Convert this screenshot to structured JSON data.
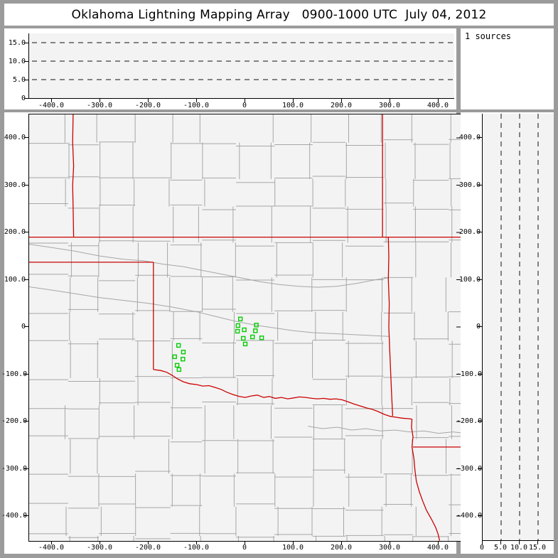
{
  "title": "Oklahoma Lightning Mapping Array   0900-1000 UTC  July 04, 2012",
  "sources_box": {
    "label": "1 sources"
  },
  "colors": {
    "frame_gray": "#9b9b9b",
    "plot_bg": "#f3f3f3",
    "axis_black": "#000000",
    "county_gray": "#a6a6a6",
    "river_gray": "#a6a6a6",
    "state_border_red": "#cc0000",
    "station_green": "#00cc00"
  },
  "chart_data": [
    {
      "id": "alt_vs_x",
      "type": "scatter",
      "description": "altitude (km) vs east-west distance (km); no sources plotted",
      "xlim": [
        -450,
        450
      ],
      "ylim": [
        0,
        17.5
      ],
      "x_ticks": [
        {
          "label": "-400.0",
          "value": -400
        },
        {
          "label": "-300.0",
          "value": -300
        },
        {
          "label": "-200.0",
          "value": -200
        },
        {
          "label": "-100.0",
          "value": -100
        },
        {
          "label": "0",
          "value": 0
        },
        {
          "label": "100.0",
          "value": 100
        },
        {
          "label": "200.0",
          "value": 200
        },
        {
          "label": "300.0",
          "value": 300
        },
        {
          "label": "400.0",
          "value": 400
        }
      ],
      "y_ticks": [
        {
          "label": "15.0",
          "value": 15
        },
        {
          "label": "10.0",
          "value": 10
        },
        {
          "label": "5.0",
          "value": 5
        },
        {
          "label": "0",
          "value": 0
        }
      ],
      "dashed_lines_km": [
        5,
        10,
        15
      ],
      "points": []
    },
    {
      "id": "plan_view",
      "type": "scatter",
      "description": "plan view map, km east-west vs km north-south; green squares are LMA stations",
      "sources_count": 1,
      "xlim": [
        -447,
        447
      ],
      "ylim": [
        -450,
        452
      ],
      "x_ticks": [
        {
          "label": "-400.0",
          "value": -400
        },
        {
          "label": "-300.0",
          "value": -300
        },
        {
          "label": "-200.0",
          "value": -200
        },
        {
          "label": "-100.0",
          "value": -100
        },
        {
          "label": "0",
          "value": 0
        },
        {
          "label": "100.0",
          "value": 100
        },
        {
          "label": "200.0",
          "value": 200
        },
        {
          "label": "300.0",
          "value": 300
        },
        {
          "label": "400.0",
          "value": 400
        }
      ],
      "y_ticks": [
        {
          "label": "400.0",
          "value": 400
        },
        {
          "label": "300.0",
          "value": 300
        },
        {
          "label": "200.0",
          "value": 200
        },
        {
          "label": "100.0",
          "value": 100
        },
        {
          "label": "0",
          "value": 0
        },
        {
          "label": "-100.0",
          "value": -100
        },
        {
          "label": "-200.0",
          "value": -200
        },
        {
          "label": "-300.0",
          "value": -300
        },
        {
          "label": "-400.0",
          "value": -400
        }
      ],
      "stations": [
        [
          -10,
          17
        ],
        [
          -15,
          3
        ],
        [
          -16,
          -9
        ],
        [
          -2,
          -6
        ],
        [
          23,
          4
        ],
        [
          21,
          -8
        ],
        [
          15,
          -21
        ],
        [
          34,
          -23
        ],
        [
          -4,
          -24
        ],
        [
          0,
          -36
        ],
        [
          -138,
          -39
        ],
        [
          -128,
          -53
        ],
        [
          -146,
          -63
        ],
        [
          -129,
          -68
        ],
        [
          -141,
          -81
        ],
        [
          -137,
          -90
        ]
      ],
      "state_borders": [
        [
          [
            -447,
            190
          ],
          [
            447,
            190
          ]
        ],
        [
          [
            -356,
            452
          ],
          [
            -357,
            390
          ],
          [
            -355,
            340
          ],
          [
            -357,
            300
          ],
          [
            -356,
            250
          ],
          [
            -355,
            190
          ]
        ],
        [
          [
            -447,
            137
          ],
          [
            -190,
            137
          ]
        ],
        [
          [
            -190,
            137
          ],
          [
            -190,
            -90
          ]
        ],
        [
          [
            -190,
            -90
          ],
          [
            -175,
            -92
          ],
          [
            -162,
            -96
          ],
          [
            -150,
            -103
          ],
          [
            -140,
            -110
          ],
          [
            -128,
            -116
          ],
          [
            -115,
            -120
          ],
          [
            -100,
            -122
          ],
          [
            -88,
            -125
          ],
          [
            -75,
            -124
          ],
          [
            -62,
            -128
          ],
          [
            -50,
            -132
          ],
          [
            -38,
            -138
          ],
          [
            -25,
            -143
          ],
          [
            -12,
            -147
          ],
          [
            0,
            -149
          ],
          [
            12,
            -146
          ],
          [
            25,
            -144
          ],
          [
            38,
            -149
          ],
          [
            50,
            -147
          ],
          [
            62,
            -151
          ],
          [
            75,
            -149
          ],
          [
            88,
            -152
          ],
          [
            100,
            -150
          ],
          [
            112,
            -148
          ],
          [
            125,
            -149
          ],
          [
            138,
            -151
          ],
          [
            150,
            -152
          ],
          [
            162,
            -151
          ],
          [
            175,
            -153
          ],
          [
            188,
            -152
          ],
          [
            200,
            -154
          ],
          [
            212,
            -158
          ],
          [
            225,
            -163
          ],
          [
            238,
            -167
          ],
          [
            250,
            -171
          ],
          [
            262,
            -174
          ],
          [
            275,
            -179
          ],
          [
            288,
            -185
          ],
          [
            300,
            -189
          ],
          [
            312,
            -191
          ],
          [
            325,
            -193
          ],
          [
            338,
            -194
          ],
          [
            345,
            -195
          ]
        ],
        [
          [
            284,
            452
          ],
          [
            284,
            190
          ]
        ],
        [
          [
            296,
            190
          ],
          [
            297,
            150
          ],
          [
            296,
            100
          ],
          [
            298,
            50
          ],
          [
            297,
            0
          ],
          [
            299,
            -50
          ],
          [
            301,
            -100
          ],
          [
            303,
            -145
          ],
          [
            305,
            -188
          ]
        ],
        [
          [
            345,
            -195
          ],
          [
            344,
            -212
          ],
          [
            347,
            -232
          ],
          [
            345,
            -254
          ],
          [
            349,
            -278
          ],
          [
            351,
            -302
          ],
          [
            354,
            -326
          ],
          [
            360,
            -348
          ],
          [
            367,
            -368
          ],
          [
            375,
            -388
          ],
          [
            385,
            -406
          ],
          [
            394,
            -424
          ],
          [
            399,
            -438
          ],
          [
            402,
            -452
          ]
        ],
        [
          [
            347,
            -254
          ],
          [
            447,
            -254
          ]
        ]
      ],
      "rivers": [
        [
          [
            -447,
            85
          ],
          [
            -400,
            78
          ],
          [
            -350,
            70
          ],
          [
            -300,
            62
          ],
          [
            -250,
            56
          ],
          [
            -200,
            50
          ],
          [
            -150,
            42
          ],
          [
            -100,
            32
          ],
          [
            -60,
            22
          ],
          [
            -20,
            12
          ],
          [
            20,
            4
          ],
          [
            60,
            -2
          ],
          [
            100,
            -8
          ],
          [
            140,
            -12
          ],
          [
            180,
            -14
          ],
          [
            220,
            -16
          ],
          [
            260,
            -18
          ],
          [
            297,
            -20
          ]
        ],
        [
          [
            -447,
            175
          ],
          [
            -400,
            168
          ],
          [
            -350,
            160
          ],
          [
            -300,
            150
          ],
          [
            -250,
            143
          ],
          [
            -210,
            140
          ],
          [
            -170,
            133
          ],
          [
            -130,
            128
          ],
          [
            -90,
            120
          ],
          [
            -50,
            112
          ],
          [
            -10,
            104
          ],
          [
            30,
            96
          ],
          [
            70,
            90
          ],
          [
            110,
            86
          ],
          [
            150,
            84
          ],
          [
            190,
            86
          ],
          [
            230,
            92
          ],
          [
            270,
            100
          ],
          [
            297,
            104
          ]
        ],
        [
          [
            130,
            -210
          ],
          [
            160,
            -215
          ],
          [
            190,
            -212
          ],
          [
            220,
            -218
          ],
          [
            250,
            -215
          ],
          [
            280,
            -220
          ],
          [
            310,
            -218
          ],
          [
            340,
            -222
          ],
          [
            370,
            -220
          ],
          [
            400,
            -225
          ],
          [
            430,
            -222
          ],
          [
            447,
            -224
          ]
        ]
      ],
      "county_grid": {
        "seed": 9,
        "row_min": 36,
        "row_max": 54,
        "col_min": 38,
        "col_max": 56,
        "jitter": 5,
        "skip": 0.07
      }
    },
    {
      "id": "alt_vs_y",
      "type": "scatter",
      "description": "altitude (km) vs north-south distance (km); no sources plotted",
      "xlim": [
        0,
        19
      ],
      "ylim": [
        -450,
        452
      ],
      "x_ticks": [
        {
          "label": "0",
          "value": 0
        },
        {
          "label": "5.0",
          "value": 5
        },
        {
          "label": "10.0",
          "value": 10
        },
        {
          "label": "15.0",
          "value": 15
        }
      ],
      "y_ticks": [
        {
          "label": "400.0",
          "value": 400
        },
        {
          "label": "300.0",
          "value": 300
        },
        {
          "label": "200.0",
          "value": 200
        },
        {
          "label": "100.0",
          "value": 100
        },
        {
          "label": "0",
          "value": 0
        },
        {
          "label": "-100.0",
          "value": -100
        },
        {
          "label": "-200.0",
          "value": -200
        },
        {
          "label": "-300.0",
          "value": -300
        },
        {
          "label": "-400.0",
          "value": -400
        }
      ],
      "dashed_lines_km": [
        5,
        10,
        15
      ],
      "points": []
    }
  ]
}
